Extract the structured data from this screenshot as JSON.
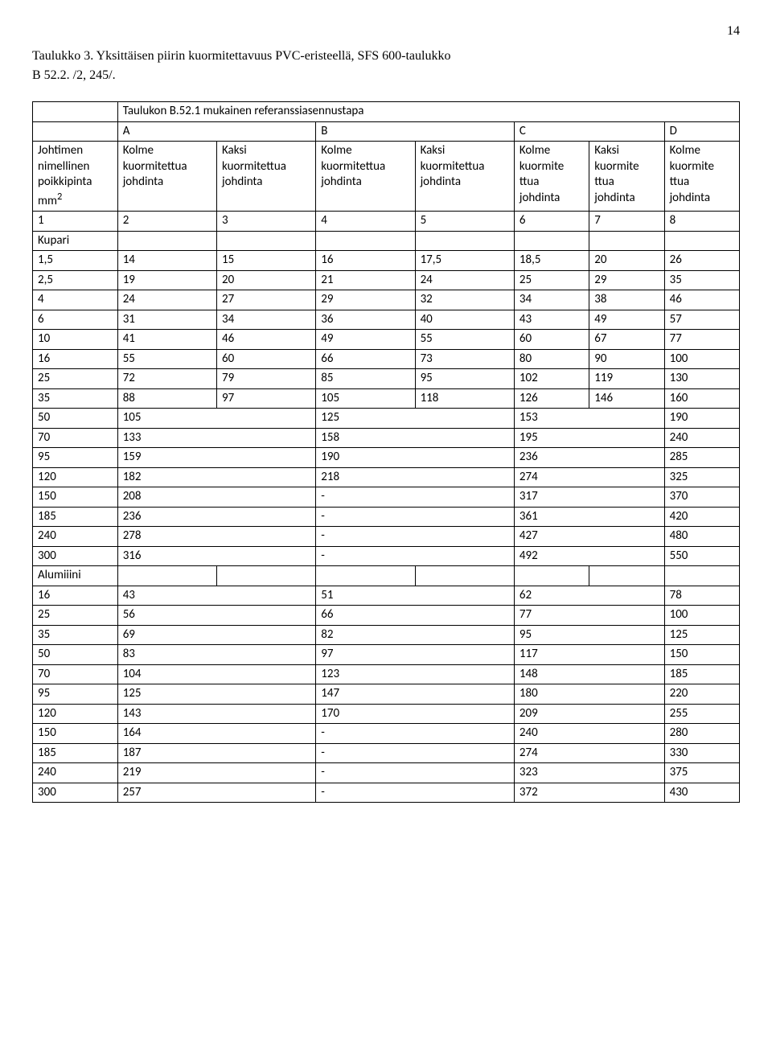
{
  "page_number": "14",
  "title_line1": "Taulukko 3. Yksittäisen piirin kuormitettavuus PVC-eristeellä, SFS 600-taulukko",
  "title_line2": "B 52.2. /2, 245/.",
  "table_caption": "Taulukon B.52.1 mukainen referanssiasennustapa",
  "group_headers": {
    "a": "A",
    "b": "B",
    "c": "C",
    "d": "D"
  },
  "row_header": {
    "c0_l1": "Johtimen",
    "c0_l2": "nimellinen",
    "c0_l3": "poikkipinta",
    "c0_l4": "mm",
    "c0_sup": "2",
    "c1_l1": "Kolme",
    "c1_l2": "kuormitettua",
    "c1_l3": "johdinta",
    "c2_l1": "Kaksi",
    "c2_l2": "kuormitettua",
    "c2_l3": "johdinta",
    "c3_l1": "Kolme",
    "c3_l2": "kuormitettua",
    "c3_l3": "johdinta",
    "c4_l1": "Kaksi",
    "c4_l2": "kuormitettua",
    "c4_l3": "johdinta",
    "c5_l1": "Kolme",
    "c5_l2": "kuormite",
    "c5_l3": "ttua",
    "c5_l4": "johdinta",
    "c6_l1": "Kaksi",
    "c6_l2": "kuormite",
    "c6_l3": "ttua",
    "c6_l4": "johdinta",
    "c7_l1": "Kolme",
    "c7_l2": "kuormite",
    "c7_l3": "ttua",
    "c7_l4": "johdinta"
  },
  "index_row": [
    "1",
    "2",
    "3",
    "4",
    "5",
    "6",
    "7",
    "8"
  ],
  "section1": "Kupari",
  "kupari_rows": [
    [
      "1,5",
      "14",
      "15",
      "16",
      "17,5",
      "18,5",
      "20",
      "26"
    ],
    [
      "2,5",
      "19",
      "20",
      "21",
      "24",
      "25",
      "29",
      "35"
    ],
    [
      "4",
      "24",
      "27",
      "29",
      "32",
      "34",
      "38",
      "46"
    ],
    [
      "6",
      "31",
      "34",
      "36",
      "40",
      "43",
      "49",
      "57"
    ],
    [
      "10",
      "41",
      "46",
      "49",
      "55",
      "60",
      "67",
      "77"
    ],
    [
      "16",
      "55",
      "60",
      "66",
      "73",
      "80",
      "90",
      "100"
    ],
    [
      "25",
      "72",
      "79",
      "85",
      "95",
      "102",
      "119",
      "130"
    ],
    [
      "35",
      "88",
      "97",
      "105",
      "118",
      "126",
      "146",
      "160"
    ]
  ],
  "kupari_merged_rows": [
    [
      "50",
      "105",
      "125",
      "153",
      "190"
    ],
    [
      "70",
      "133",
      "158",
      "195",
      "240"
    ],
    [
      "95",
      "159",
      "190",
      "236",
      "285"
    ],
    [
      "120",
      "182",
      "218",
      "274",
      "325"
    ],
    [
      "150",
      "208",
      "-",
      "317",
      "370"
    ],
    [
      "185",
      "236",
      "-",
      "361",
      "420"
    ],
    [
      "240",
      "278",
      "-",
      "427",
      "480"
    ],
    [
      "300",
      "316",
      "-",
      "492",
      "550"
    ]
  ],
  "section2": "Alumiiini",
  "alu_merged_rows": [
    [
      "16",
      "43",
      "51",
      "62",
      "78"
    ],
    [
      "25",
      "56",
      "66",
      "77",
      "100"
    ],
    [
      "35",
      "69",
      "82",
      "95",
      "125"
    ],
    [
      "50",
      "83",
      "97",
      "117",
      "150"
    ],
    [
      "70",
      "104",
      "123",
      "148",
      "185"
    ],
    [
      "95",
      "125",
      "147",
      "180",
      "220"
    ],
    [
      "120",
      "143",
      "170",
      "209",
      "255"
    ],
    [
      "150",
      "164",
      "-",
      "240",
      "280"
    ],
    [
      "185",
      "187",
      "-",
      "274",
      "330"
    ],
    [
      "240",
      "219",
      "-",
      "323",
      "375"
    ],
    [
      "300",
      "257",
      "-",
      "372",
      "430"
    ]
  ]
}
